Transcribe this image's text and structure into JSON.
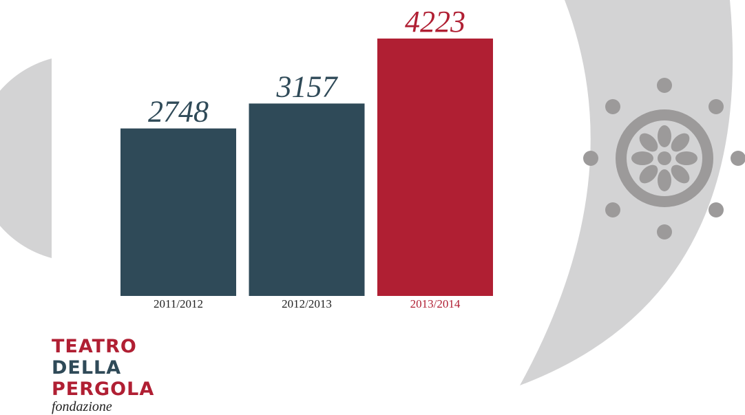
{
  "chart_data": {
    "type": "bar",
    "categories": [
      "2011/2012",
      "2012/2013",
      "2013/2014"
    ],
    "values": [
      2748,
      3157,
      4223
    ],
    "colors": [
      "#2f4a58",
      "#2f4a58",
      "#b01f33"
    ]
  },
  "logo": {
    "lines": [
      "TEATRO",
      "DELLA",
      "PERGOLA"
    ],
    "subtitle": "fondazione"
  }
}
